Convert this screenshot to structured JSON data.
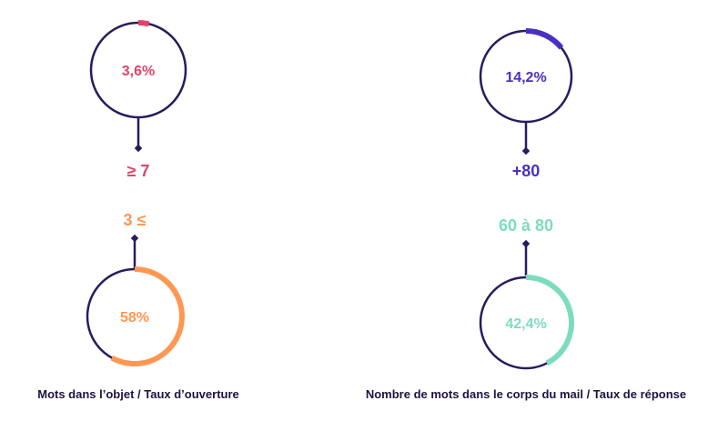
{
  "colors": {
    "stroke": "#2a1a5e",
    "pink": "#e0446b",
    "orange": "#ff9752",
    "purple": "#4b2fc2",
    "mint": "#7ddcbf"
  },
  "panels": [
    {
      "caption": "Mots dans l’objet / Taux d’ouverture",
      "donuts": [
        {
          "label": "3,6%",
          "value": 3.6,
          "color": "#e0446b",
          "threshold": "≥ 7"
        },
        {
          "label": "58%",
          "value": 58,
          "color": "#ff9752",
          "threshold": "3 ≤"
        }
      ]
    },
    {
      "caption": "Nombre de mots dans le corps du mail / Taux de réponse",
      "donuts": [
        {
          "label": "14,2%",
          "value": 14.2,
          "color": "#4b2fc2",
          "threshold": "+80"
        },
        {
          "label": "42,4%",
          "value": 42.4,
          "color": "#7ddcbf",
          "threshold": "60 à 80"
        }
      ]
    }
  ],
  "chart_data": [
    {
      "type": "pie",
      "title": "",
      "caption": "Mots dans l’objet / Taux d’ouverture",
      "categories": [
        "≥ 7",
        "3 ≤"
      ],
      "values": [
        3.6,
        58
      ],
      "value_labels": [
        "3,6%",
        "58%"
      ],
      "unit": "%"
    },
    {
      "type": "pie",
      "title": "",
      "caption": "Nombre de mots dans le corps du mail / Taux de réponse",
      "categories": [
        "+80",
        "60 à 80"
      ],
      "values": [
        14.2,
        42.4
      ],
      "value_labels": [
        "14,2%",
        "42,4%"
      ],
      "unit": "%"
    }
  ]
}
